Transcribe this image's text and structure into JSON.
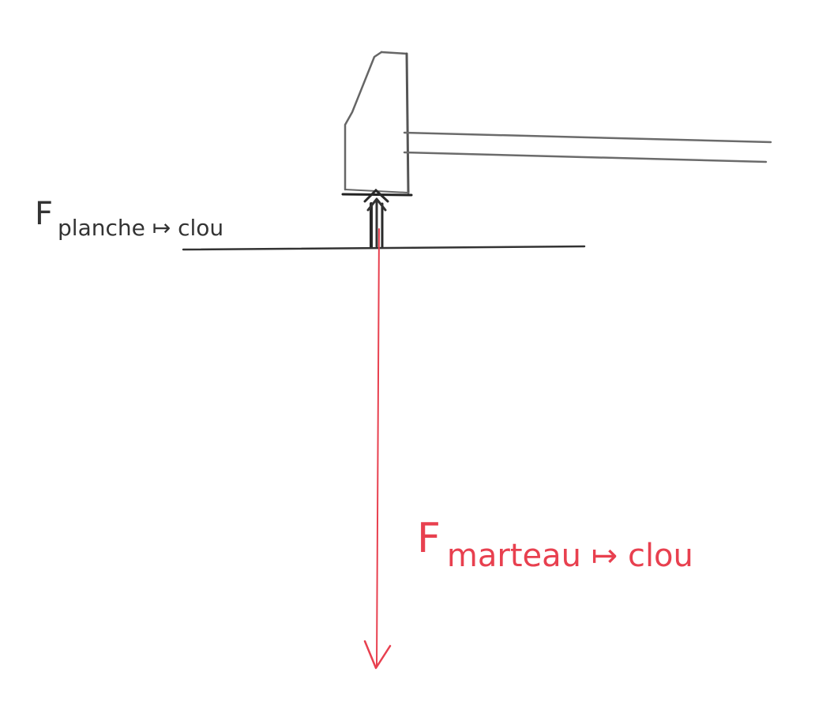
{
  "labels": {
    "force_planche": {
      "symbol": "F",
      "subscript": "planche ↦ clou"
    },
    "force_marteau": {
      "symbol": "F",
      "subscript": "marteau ↦ clou"
    }
  },
  "colors": {
    "pencil": "#555555",
    "pencil_dark": "#222222",
    "board_line": "#333333",
    "force_red": "#e8404f"
  },
  "diagram": {
    "objects": [
      "hammer-head",
      "hammer-handle",
      "nail",
      "board-surface"
    ],
    "forces": [
      {
        "name": "force-planche-arrow",
        "direction": "up"
      },
      {
        "name": "force-marteau-arrow",
        "direction": "down"
      }
    ]
  }
}
